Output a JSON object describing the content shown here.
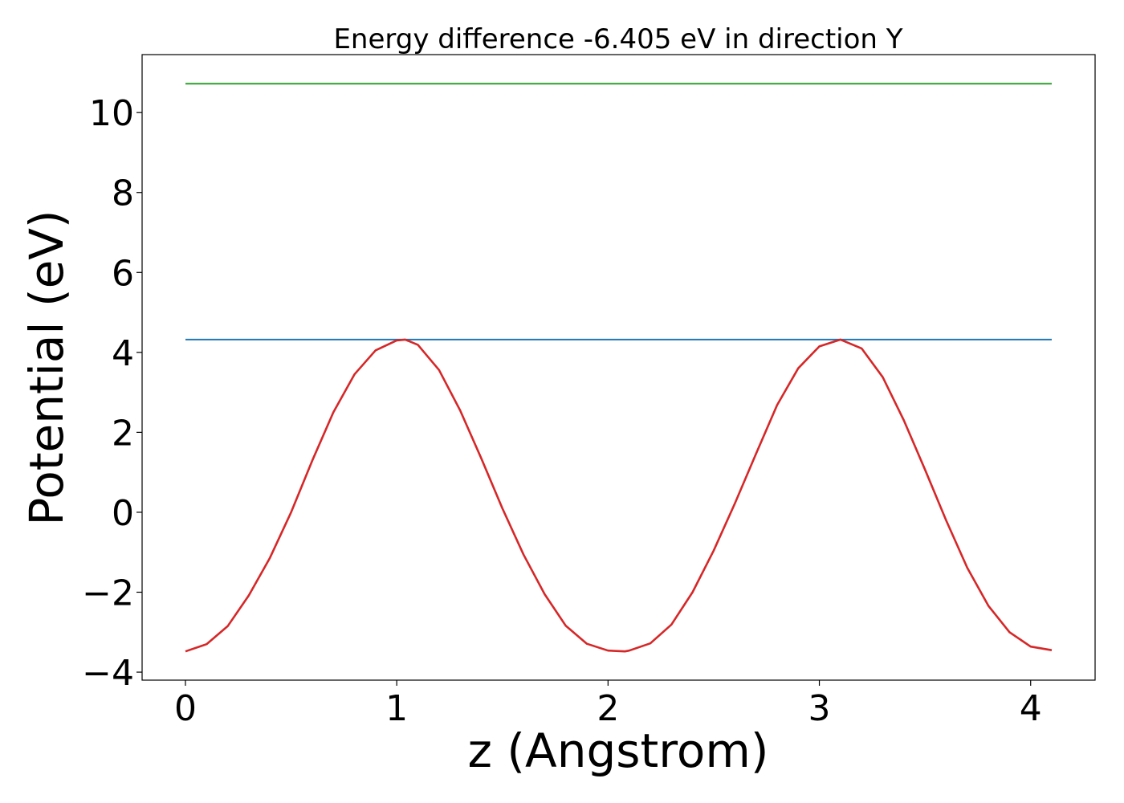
{
  "chart_data": {
    "type": "line",
    "title": "Energy difference -6.405 eV in direction Y",
    "xlabel": "z (Angstrom)",
    "ylabel": "Potential (eV)",
    "xlim": [
      -0.205,
      4.305
    ],
    "ylim": [
      -4.2,
      11.45
    ],
    "xticks": [
      0,
      1,
      2,
      3,
      4
    ],
    "xtick_labels": [
      "0",
      "1",
      "2",
      "3",
      "4"
    ],
    "yticks": [
      -4,
      -2,
      0,
      2,
      4,
      6,
      8,
      10
    ],
    "ytick_labels": [
      "−4",
      "−2",
      "0",
      "2",
      "4",
      "6",
      "8",
      "10"
    ],
    "grid": false,
    "legend": "none",
    "series": [
      {
        "color": "#2ca02c",
        "x": [
          0,
          4.1
        ],
        "y": [
          10.72,
          10.72
        ]
      },
      {
        "color": "#1f77b4",
        "x": [
          0,
          4.1
        ],
        "y": [
          4.32,
          4.32
        ]
      },
      {
        "color": "#d62728",
        "x": [
          0,
          0.1,
          0.2,
          0.3,
          0.4,
          0.5,
          0.6,
          0.7,
          0.8,
          0.9,
          1.0,
          1.04,
          1.1,
          1.2,
          1.3,
          1.4,
          1.5,
          1.6,
          1.7,
          1.8,
          1.9,
          2.0,
          2.08,
          2.1,
          2.2,
          2.3,
          2.4,
          2.5,
          2.6,
          2.7,
          2.8,
          2.9,
          3.0,
          3.1,
          3.2,
          3.3,
          3.4,
          3.5,
          3.6,
          3.7,
          3.8,
          3.9,
          4.0,
          4.1
        ],
        "y": [
          -3.48,
          -3.3,
          -2.85,
          -2.08,
          -1.14,
          0.0,
          1.29,
          2.5,
          3.45,
          4.05,
          4.3,
          4.32,
          4.19,
          3.56,
          2.55,
          1.35,
          0.1,
          -1.06,
          -2.05,
          -2.84,
          -3.29,
          -3.46,
          -3.48,
          -3.46,
          -3.28,
          -2.81,
          -2.0,
          -0.96,
          0.22,
          1.46,
          2.68,
          3.6,
          4.15,
          4.32,
          4.1,
          3.38,
          2.3,
          1.07,
          -0.2,
          -1.39,
          -2.34,
          -3.0,
          -3.36,
          -3.45
        ]
      }
    ]
  }
}
